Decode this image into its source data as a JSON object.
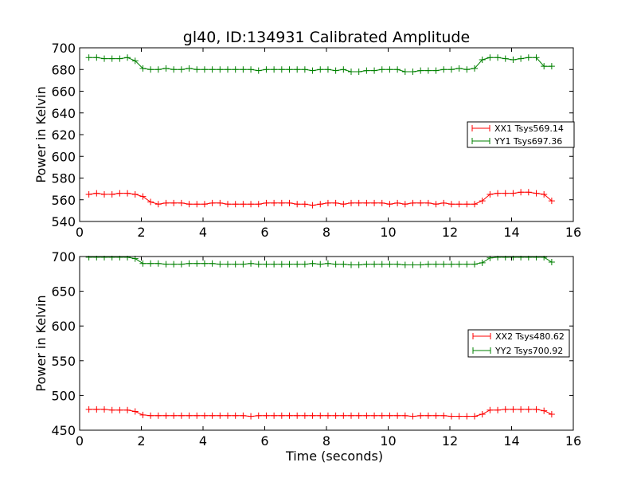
{
  "title": "gl40, ID:134931 Calibrated Amplitude",
  "chart_data": [
    {
      "type": "line",
      "ylabel": "Power in Kelvin",
      "xlabel": "",
      "xlim": [
        0,
        16
      ],
      "ylim": [
        540,
        700
      ],
      "xticks": [
        0,
        2,
        4,
        6,
        8,
        10,
        12,
        14,
        16
      ],
      "yticks": [
        540,
        560,
        580,
        600,
        620,
        640,
        660,
        680,
        700
      ],
      "grid": false,
      "legend_position": "right",
      "marker": "plus",
      "series": [
        {
          "name": "XX1 Tsys569.14",
          "color": "#ff0000",
          "x": [
            0.3,
            0.55,
            0.8,
            1.05,
            1.3,
            1.55,
            1.8,
            2.05,
            2.3,
            2.55,
            2.8,
            3.05,
            3.3,
            3.55,
            3.8,
            4.05,
            4.3,
            4.55,
            4.8,
            5.05,
            5.3,
            5.55,
            5.8,
            6.05,
            6.3,
            6.55,
            6.8,
            7.05,
            7.3,
            7.55,
            7.8,
            8.05,
            8.3,
            8.55,
            8.8,
            9.05,
            9.3,
            9.55,
            9.8,
            10.05,
            10.3,
            10.55,
            10.8,
            11.05,
            11.3,
            11.55,
            11.8,
            12.05,
            12.3,
            12.55,
            12.8,
            13.05,
            13.3,
            13.55,
            13.8,
            14.05,
            14.3,
            14.55,
            14.8,
            15.05,
            15.3
          ],
          "y": [
            565,
            566,
            565,
            565,
            566,
            566,
            565,
            563,
            558,
            556,
            557,
            557,
            557,
            556,
            556,
            556,
            557,
            557,
            556,
            556,
            556,
            556,
            556,
            557,
            557,
            557,
            557,
            556,
            556,
            555,
            556,
            557,
            557,
            556,
            557,
            557,
            557,
            557,
            557,
            556,
            557,
            556,
            557,
            557,
            557,
            556,
            557,
            556,
            556,
            556,
            556,
            559,
            565,
            566,
            566,
            566,
            567,
            567,
            566,
            565,
            559
          ]
        },
        {
          "name": "YY1 Tsys697.36",
          "color": "#008000",
          "x": [
            0.3,
            0.55,
            0.8,
            1.05,
            1.3,
            1.55,
            1.8,
            2.05,
            2.3,
            2.55,
            2.8,
            3.05,
            3.3,
            3.55,
            3.8,
            4.05,
            4.3,
            4.55,
            4.8,
            5.05,
            5.3,
            5.55,
            5.8,
            6.05,
            6.3,
            6.55,
            6.8,
            7.05,
            7.3,
            7.55,
            7.8,
            8.05,
            8.3,
            8.55,
            8.8,
            9.05,
            9.3,
            9.55,
            9.8,
            10.05,
            10.3,
            10.55,
            10.8,
            11.05,
            11.3,
            11.55,
            11.8,
            12.05,
            12.3,
            12.55,
            12.8,
            13.05,
            13.3,
            13.55,
            13.8,
            14.05,
            14.3,
            14.55,
            14.8,
            15.05,
            15.3
          ],
          "y": [
            691,
            691,
            690,
            690,
            690,
            691,
            688,
            681,
            680,
            680,
            681,
            680,
            680,
            681,
            680,
            680,
            680,
            680,
            680,
            680,
            680,
            680,
            679,
            680,
            680,
            680,
            680,
            680,
            680,
            679,
            680,
            680,
            679,
            680,
            678,
            678,
            679,
            679,
            680,
            680,
            680,
            678,
            678,
            679,
            679,
            679,
            680,
            680,
            681,
            680,
            681,
            689,
            691,
            691,
            690,
            689,
            690,
            691,
            691,
            683,
            683
          ]
        }
      ]
    },
    {
      "type": "line",
      "ylabel": "Power in Kelvin",
      "xlabel": "Time (seconds)",
      "xlim": [
        0,
        16
      ],
      "ylim": [
        450,
        700
      ],
      "xticks": [
        0,
        2,
        4,
        6,
        8,
        10,
        12,
        14,
        16
      ],
      "yticks": [
        450,
        500,
        550,
        600,
        650,
        700
      ],
      "grid": false,
      "legend_position": "right",
      "marker": "plus",
      "series": [
        {
          "name": "XX2 Tsys480.62",
          "color": "#ff0000",
          "x": [
            0.3,
            0.55,
            0.8,
            1.05,
            1.3,
            1.55,
            1.8,
            2.05,
            2.3,
            2.55,
            2.8,
            3.05,
            3.3,
            3.55,
            3.8,
            4.05,
            4.3,
            4.55,
            4.8,
            5.05,
            5.3,
            5.55,
            5.8,
            6.05,
            6.3,
            6.55,
            6.8,
            7.05,
            7.3,
            7.55,
            7.8,
            8.05,
            8.3,
            8.55,
            8.8,
            9.05,
            9.3,
            9.55,
            9.8,
            10.05,
            10.3,
            10.55,
            10.8,
            11.05,
            11.3,
            11.55,
            11.8,
            12.05,
            12.3,
            12.55,
            12.8,
            13.05,
            13.3,
            13.55,
            13.8,
            14.05,
            14.3,
            14.55,
            14.8,
            15.05,
            15.3
          ],
          "y": [
            480,
            480,
            480,
            479,
            479,
            479,
            477,
            472,
            471,
            471,
            471,
            471,
            471,
            471,
            471,
            471,
            471,
            471,
            471,
            471,
            471,
            470,
            471,
            471,
            471,
            471,
            471,
            471,
            471,
            471,
            471,
            471,
            471,
            471,
            471,
            471,
            471,
            471,
            471,
            471,
            471,
            471,
            470,
            471,
            471,
            471,
            471,
            470,
            470,
            470,
            470,
            473,
            479,
            479,
            480,
            480,
            480,
            480,
            480,
            478,
            473
          ]
        },
        {
          "name": "YY2 Tsys700.92",
          "color": "#008000",
          "x": [
            0.3,
            0.55,
            0.8,
            1.05,
            1.3,
            1.55,
            1.8,
            2.05,
            2.3,
            2.55,
            2.8,
            3.05,
            3.3,
            3.55,
            3.8,
            4.05,
            4.3,
            4.55,
            4.8,
            5.05,
            5.3,
            5.55,
            5.8,
            6.05,
            6.3,
            6.55,
            6.8,
            7.05,
            7.3,
            7.55,
            7.8,
            8.05,
            8.3,
            8.55,
            8.8,
            9.05,
            9.3,
            9.55,
            9.8,
            10.05,
            10.3,
            10.55,
            10.8,
            11.05,
            11.3,
            11.55,
            11.8,
            12.05,
            12.3,
            12.55,
            12.8,
            13.05,
            13.3,
            13.55,
            13.8,
            14.05,
            14.3,
            14.55,
            14.8,
            15.05,
            15.3
          ],
          "y": [
            699,
            699,
            699,
            699,
            699,
            699,
            697,
            690,
            690,
            690,
            689,
            689,
            689,
            690,
            690,
            690,
            690,
            689,
            689,
            689,
            689,
            690,
            689,
            689,
            689,
            689,
            689,
            689,
            689,
            690,
            689,
            690,
            689,
            689,
            688,
            688,
            689,
            689,
            689,
            689,
            689,
            688,
            688,
            688,
            689,
            689,
            689,
            689,
            689,
            689,
            689,
            691,
            698,
            699,
            699,
            699,
            699,
            699,
            699,
            699,
            692
          ]
        }
      ]
    }
  ]
}
